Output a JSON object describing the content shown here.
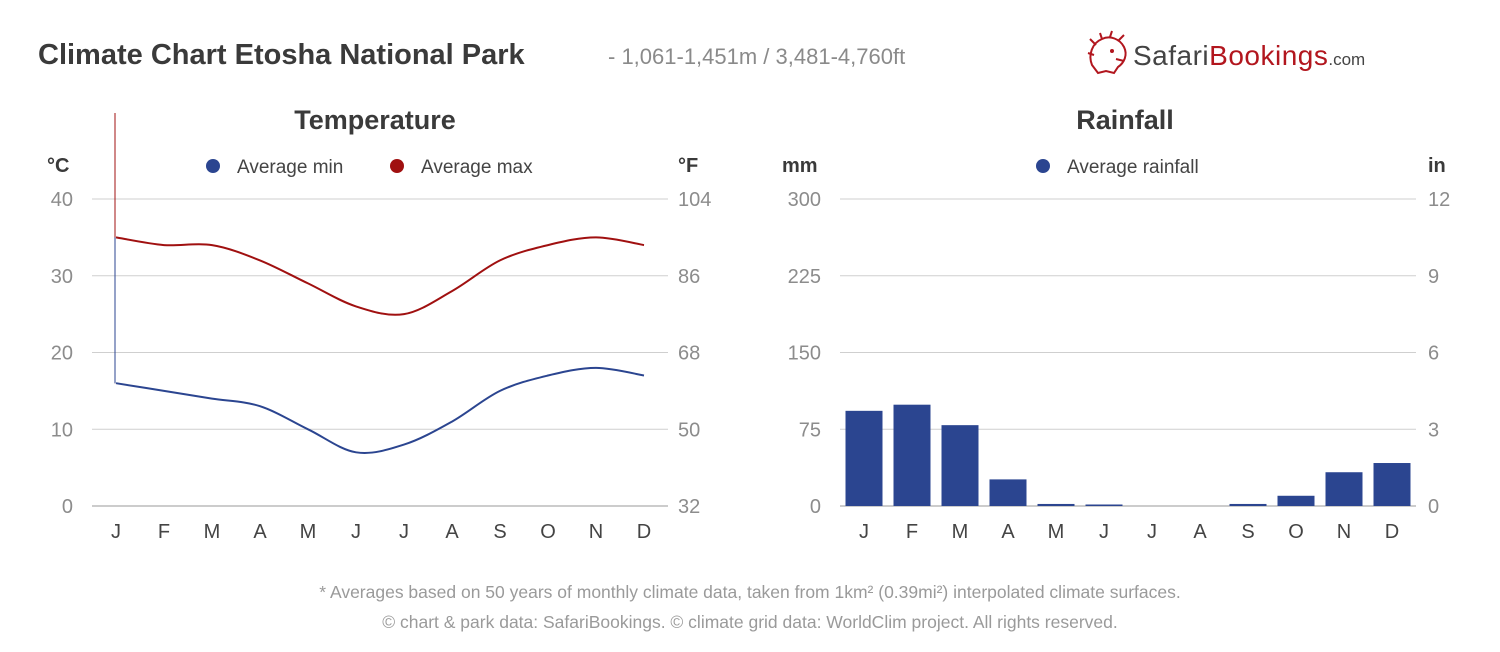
{
  "header": {
    "title": "Climate Chart Etosha National Park",
    "subtitle": "- 1,061-1,451m / 3,481-4,760ft"
  },
  "logo": {
    "part1": "Safari",
    "part2": "Bookings",
    "part3": ".com",
    "icon": "lion-head-icon",
    "brand_color": "#b2161e"
  },
  "footer": {
    "line1": "* Averages based on 50 years of monthly climate data, taken from 1km² (0.39mi²) interpolated climate surfaces.",
    "line2": "© chart & park data: SafariBookings. © climate grid data: WorldClim project. All rights reserved."
  },
  "chart_data": [
    {
      "type": "line",
      "title": "Temperature",
      "y_unit_left": "°C",
      "y_unit_right": "°F",
      "categories": [
        "J",
        "F",
        "M",
        "A",
        "M",
        "J",
        "J",
        "A",
        "S",
        "O",
        "N",
        "D"
      ],
      "ylim": [
        0,
        40
      ],
      "yticks_left": [
        "0",
        "10",
        "20",
        "30",
        "40"
      ],
      "yticks_right": [
        "32",
        "50",
        "68",
        "86",
        "104"
      ],
      "grid": true,
      "legend_position": "top-center",
      "series": [
        {
          "name": "Average min",
          "color": "#2b4590",
          "values": [
            16,
            15,
            14,
            13,
            10,
            7,
            8,
            11,
            15,
            17,
            18,
            17
          ]
        },
        {
          "name": "Average max",
          "color": "#a01010",
          "values": [
            35,
            34,
            34,
            32,
            29,
            26,
            25,
            28,
            32,
            34,
            35,
            34
          ]
        }
      ]
    },
    {
      "type": "bar",
      "title": "Rainfall",
      "y_unit_left": "mm",
      "y_unit_right": "in",
      "categories": [
        "J",
        "F",
        "M",
        "A",
        "M",
        "J",
        "J",
        "A",
        "S",
        "O",
        "N",
        "D"
      ],
      "ylim": [
        0,
        300
      ],
      "yticks_left": [
        "0",
        "75",
        "150",
        "225",
        "300"
      ],
      "yticks_right": [
        "0",
        "3",
        "6",
        "9",
        "12"
      ],
      "grid": true,
      "legend_position": "top-center",
      "series": [
        {
          "name": "Average rainfall",
          "color": "#2b4590",
          "values": [
            93,
            99,
            79,
            26,
            2,
            1,
            0,
            0,
            2,
            10,
            33,
            42
          ]
        }
      ]
    }
  ]
}
